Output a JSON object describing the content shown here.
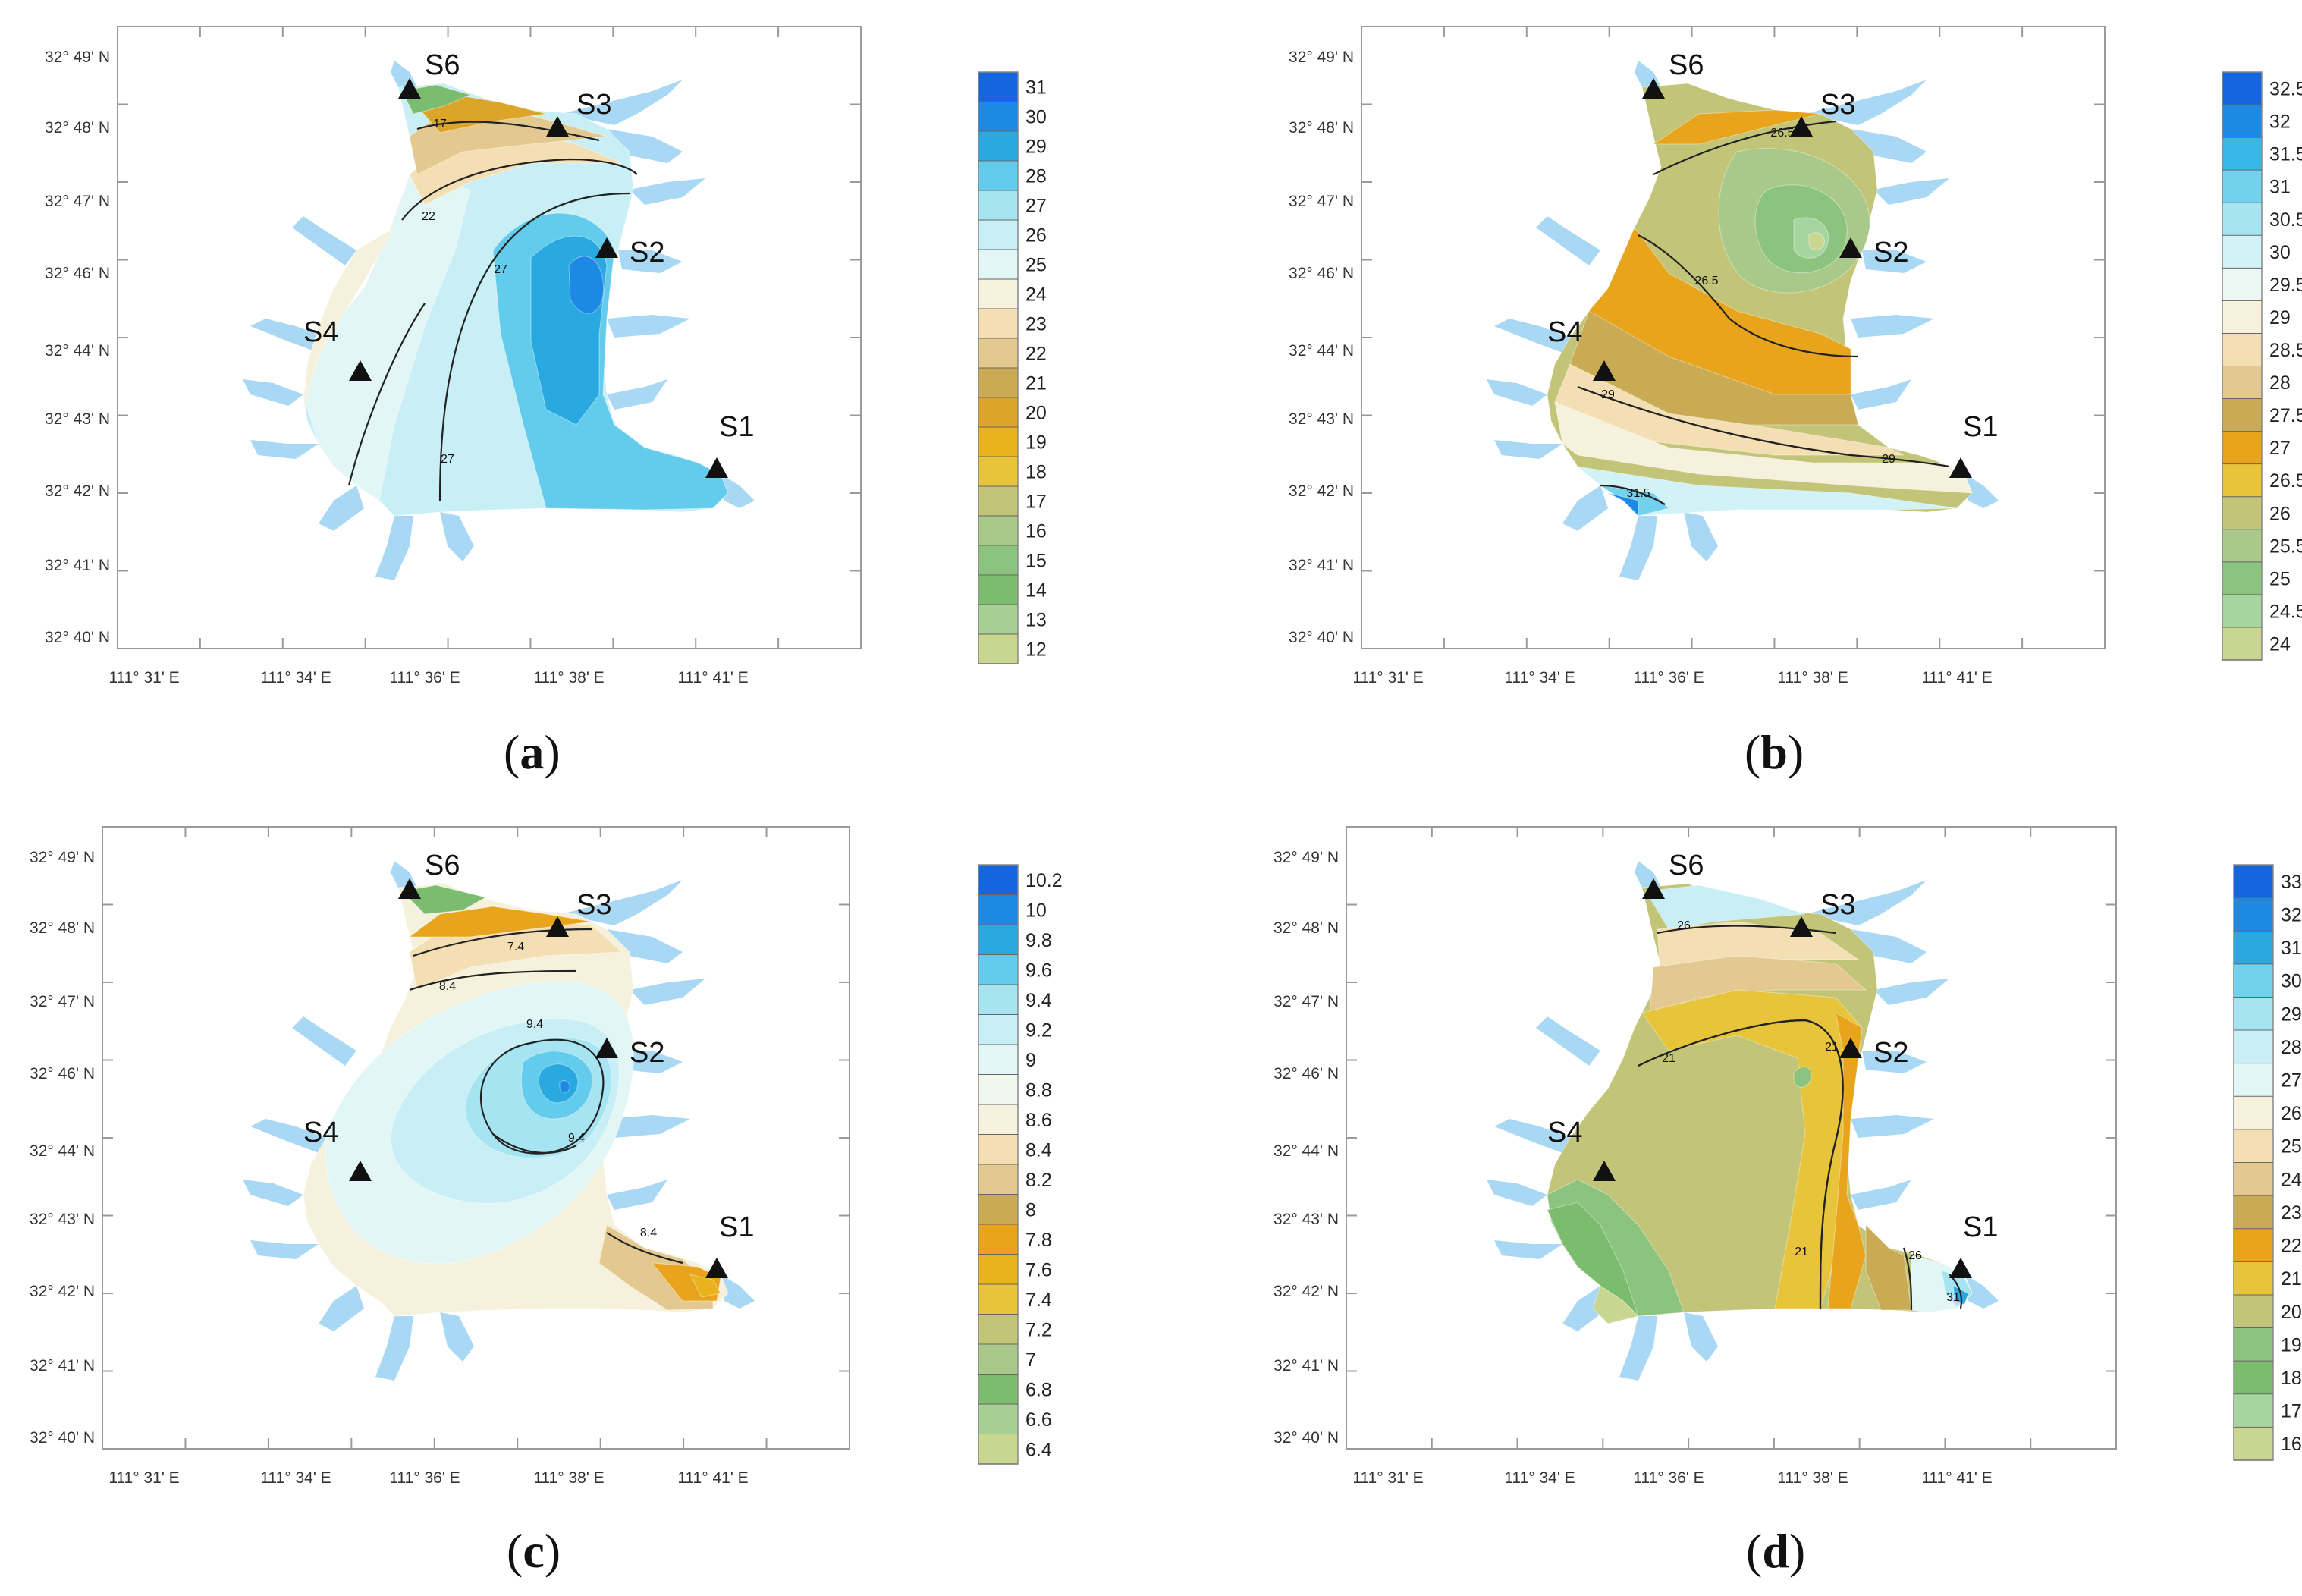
{
  "figure": {
    "panels": [
      {
        "id": "a",
        "caption_letter": "a",
        "lat_labels": [
          "32° 49' N",
          "32° 48' N",
          "32° 47' N",
          "32° 46' N",
          "32° 44' N",
          "32° 43' N",
          "32° 42' N",
          "32° 41' N",
          "32° 40' N"
        ],
        "lon_labels": [
          "111° 31' E",
          "111° 34' E",
          "111° 36' E",
          "111° 38' E",
          "111° 41' E"
        ],
        "stations": [
          "S6",
          "S3",
          "S2",
          "S4",
          "S1"
        ],
        "colorbar_ticks": [
          "31",
          "30",
          "29",
          "28",
          "27",
          "26",
          "25",
          "24",
          "23",
          "22",
          "21",
          "20",
          "19",
          "18",
          "17",
          "16",
          "15",
          "14",
          "13",
          "12"
        ],
        "contour_labels": [
          "17",
          "22",
          "27",
          "27"
        ],
        "colors": [
          "#1565e0",
          "#1e88e5",
          "#29a9e0",
          "#63ccec",
          "#a6e4f2",
          "#c8eff6",
          "#e2f6f6",
          "#f5f1dd",
          "#f3dfb3",
          "#e3c98f",
          "#c9ab55",
          "#dba52a",
          "#e8b31c",
          "#e8c43a",
          "#c2c477",
          "#a9c98a",
          "#8cc47f",
          "#7cbc6e",
          "#a7cf93",
          "#c9d690"
        ]
      },
      {
        "id": "b",
        "caption_letter": "b",
        "lat_labels": [
          "32° 49' N",
          "32° 48' N",
          "32° 47' N",
          "32° 46' N",
          "32° 44' N",
          "32° 43' N",
          "32° 42' N",
          "32° 41' N",
          "32° 40' N"
        ],
        "lon_labels": [
          "111° 31' E",
          "111° 34' E",
          "111° 36' E",
          "111° 38' E",
          "111° 41' E"
        ],
        "stations": [
          "S6",
          "S3",
          "S2",
          "S4",
          "S1"
        ],
        "colorbar_ticks": [
          "32.5",
          "32",
          "31.5",
          "31",
          "30.5",
          "30",
          "29.5",
          "29",
          "28.5",
          "28",
          "27.5",
          "27",
          "26.5",
          "26",
          "25.5",
          "25",
          "24.5",
          "24"
        ],
        "contour_labels": [
          "26.5",
          "26.5",
          "29",
          "29",
          "31.5"
        ],
        "colors": [
          "#1565e0",
          "#1e88e5",
          "#38b8e6",
          "#72d2ee",
          "#a6e4f2",
          "#d1f2f7",
          "#ecf7f4",
          "#f5f1dd",
          "#f3dfb3",
          "#e3c98f",
          "#c9ab55",
          "#e8a41c",
          "#e8c43a",
          "#c2c477",
          "#a9c98a",
          "#8cc47f",
          "#a7d5a0",
          "#c9d690"
        ]
      },
      {
        "id": "c",
        "caption_letter": "c",
        "lat_labels": [
          "32° 49' N",
          "32° 48' N",
          "32° 47' N",
          "32° 46' N",
          "32° 44' N",
          "32° 43' N",
          "32° 42' N",
          "32° 41' N",
          "32° 40' N"
        ],
        "lon_labels": [
          "111° 31' E",
          "111° 34' E",
          "111° 36' E",
          "111° 38' E",
          "111° 41' E"
        ],
        "stations": [
          "S6",
          "S3",
          "S2",
          "S4",
          "S1"
        ],
        "colorbar_ticks": [
          "10.2",
          "10",
          "9.8",
          "9.6",
          "9.4",
          "9.2",
          "9",
          "8.8",
          "8.6",
          "8.4",
          "8.2",
          "8",
          "7.8",
          "7.6",
          "7.4",
          "7.2",
          "7",
          "6.8",
          "6.6",
          "6.4"
        ],
        "contour_labels": [
          "7.4",
          "8.4",
          "9.4",
          "9.4",
          "8.4"
        ],
        "colors": [
          "#1565e0",
          "#1e88e5",
          "#29a9e0",
          "#63ccec",
          "#a6e4f2",
          "#c8eff6",
          "#e2f6f6",
          "#f0f8ee",
          "#f5f1dd",
          "#f3dfb3",
          "#e3c98f",
          "#c9ab55",
          "#e8a41c",
          "#e8b31c",
          "#e8c43a",
          "#c2c477",
          "#a9c98a",
          "#7cbc6e",
          "#a7cf93",
          "#c9d690"
        ]
      },
      {
        "id": "d",
        "caption_letter": "d",
        "lat_labels": [
          "32° 49' N",
          "32° 48' N",
          "32° 47' N",
          "32° 46' N",
          "32° 44' N",
          "32° 43' N",
          "32° 42' N",
          "32° 41' N",
          "32° 40' N"
        ],
        "lon_labels": [
          "111° 31' E",
          "111° 34' E",
          "111° 36' E",
          "111° 38' E",
          "111° 41' E"
        ],
        "stations": [
          "S6",
          "S3",
          "S2",
          "S4",
          "S1"
        ],
        "colorbar_ticks": [
          "33",
          "32",
          "31",
          "30",
          "29",
          "28",
          "27",
          "26",
          "25",
          "24",
          "23",
          "22",
          "21",
          "20",
          "19",
          "18",
          "17",
          "16"
        ],
        "contour_labels": [
          "26",
          "21",
          "21",
          "21",
          "26",
          "31"
        ],
        "colors": [
          "#1565e0",
          "#1e88e5",
          "#29a9e0",
          "#72d2ee",
          "#a6e4f2",
          "#c8eff6",
          "#e2f6f6",
          "#f5f1dd",
          "#f3dfb3",
          "#e3c98f",
          "#c9ab55",
          "#e8a41c",
          "#e8c43a",
          "#c2c477",
          "#8cc47f",
          "#7cbc6e",
          "#a7d5a0",
          "#c9d690"
        ]
      }
    ],
    "water_color": "#a9d8f5"
  }
}
